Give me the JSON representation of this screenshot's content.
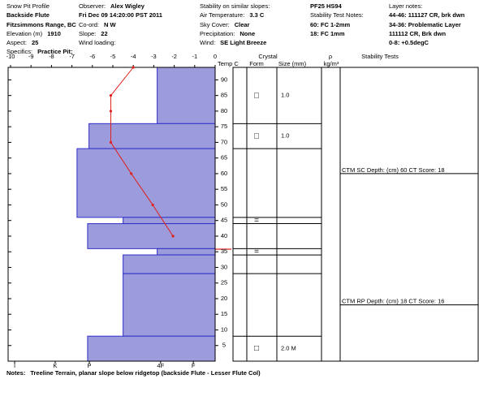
{
  "chart_data": {
    "type": "profile",
    "header": {
      "columns": [
        [
          {
            "label": "Snow Pit Profile"
          },
          {
            "value": "Backside Flute"
          },
          {
            "value": "Fitzsimmons Range, BC"
          },
          {
            "label": "Elevation (m)",
            "value": "1910"
          },
          {
            "label": "Aspect:",
            "value": "25"
          },
          {
            "label": "Specifics:",
            "value": "Practice Pit;"
          }
        ],
        [
          {
            "label": "Observer:",
            "value": "Alex Wigley"
          },
          {
            "value": "Fri Dec 09 14:20:00 PST 2011"
          },
          {
            "label": "Co-ord:",
            "value": "N  W"
          },
          {
            "label": "Slope:",
            "value": "22"
          },
          {
            "label": "Wind loading:"
          }
        ],
        [
          {
            "label": "Stability on similar slopes:"
          },
          {
            "label": "Air Temperature:",
            "value": "3.3 C"
          },
          {
            "label": "Sky Cover:",
            "value": "Clear"
          },
          {
            "label": "Precipitation:",
            "value": "None"
          },
          {
            "label": "Wind:",
            "value": "SE Light Breeze"
          }
        ],
        [
          {
            "value": "PF25 HS94"
          },
          {
            "label": "Stability Test Notes:"
          },
          {
            "value": "60: FC 1-2mm"
          },
          {
            "value": "18: FC 1mm"
          }
        ],
        [
          {
            "label": "Layer notes:"
          },
          {
            "value": "44-46: 111127 CR, brk dwn"
          },
          {
            "value": "34-36: Problematic Layer"
          },
          {
            "value": "111112 CR, Brk dwn"
          },
          {
            "value": "0-8: +0.5degC"
          }
        ]
      ]
    },
    "footer": {
      "label": "Notes:",
      "value": "Treeline Terrain, planar slope below ridgetop (backside Flute - Lesser Flute Col)"
    },
    "column_headers": {
      "temp": "Temp C",
      "crystal": "Crystal",
      "form": "Form",
      "size": "Size (mm)",
      "rho": "ρ",
      "density": "kg/m³",
      "stability": "Stability Tests"
    },
    "xlim": [
      -10,
      0
    ],
    "xticks": [
      -10,
      -9,
      -8,
      -7,
      -6,
      -5,
      -4,
      -3,
      -2,
      -1,
      0
    ],
    "ylim": [
      0,
      94
    ],
    "yticks": [
      5,
      10,
      15,
      20,
      25,
      30,
      35,
      40,
      45,
      50,
      55,
      60,
      65,
      70,
      75,
      80,
      85,
      90
    ],
    "hardness_xlim": [
      0,
      6
    ],
    "hardness_ticks": [
      {
        "value": 5.88,
        "label": "I"
      },
      {
        "value": 4.69,
        "label": "K"
      },
      {
        "value": 3.69,
        "label": "P"
      },
      {
        "value": 1.6,
        "label": "4F"
      },
      {
        "value": 0.64,
        "label": "F"
      }
    ],
    "bar_color": "#9c9cdc",
    "bar_edge": "#2f2fc8",
    "layers": [
      {
        "top": 94,
        "bottom": 76,
        "hardness": 1.7,
        "form": "□",
        "size": "1.0"
      },
      {
        "top": 76,
        "bottom": 68,
        "hardness": 3.7,
        "form": "□",
        "size": "1.0"
      },
      {
        "top": 68,
        "bottom": 46,
        "hardness": 4.05
      },
      {
        "top": 46,
        "bottom": 44,
        "hardness": 2.7,
        "form": "="
      },
      {
        "top": 44,
        "bottom": 36,
        "hardness": 3.74
      },
      {
        "top": 36,
        "bottom": 34,
        "hardness": 1.7,
        "form": "="
      },
      {
        "top": 34,
        "bottom": 28,
        "hardness": 2.7
      },
      {
        "top": 28,
        "bottom": 8,
        "hardness": 2.7
      },
      {
        "top": 8,
        "bottom": 0,
        "hardness": 3.74,
        "form": "□",
        "size": "2.0 M"
      }
    ],
    "temperature": {
      "color": "#e0201c",
      "depths": [
        94,
        85,
        80,
        70,
        60,
        50,
        40
      ],
      "temps": [
        -4,
        -5.1,
        -5.1,
        -5.1,
        -4.1,
        -3.05,
        -2.06
      ]
    },
    "stability_tests": [
      {
        "depth": 60,
        "text": "CTM SC Depth: (cm) 60 CT Score: 18"
      },
      {
        "depth": 18,
        "text": "CTM RP Depth: (cm) 18 CT Score: 16"
      }
    ]
  }
}
